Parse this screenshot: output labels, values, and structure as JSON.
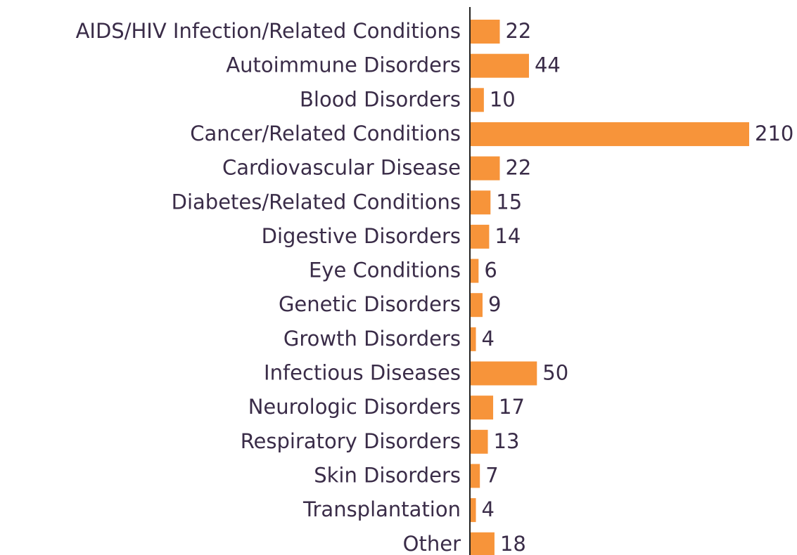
{
  "chart_data": {
    "type": "bar",
    "orientation": "horizontal",
    "categories": [
      "AIDS/HIV Infection/Related Conditions",
      "Autoimmune Disorders",
      "Blood Disorders",
      "Cancer/Related Conditions",
      "Cardiovascular Disease",
      "Diabetes/Related Conditions",
      "Digestive Disorders",
      "Eye Conditions",
      "Genetic Disorders",
      "Growth Disorders",
      "Infectious Diseases",
      "Neurologic Disorders",
      "Respiratory Disorders",
      "Skin Disorders",
      "Transplantation",
      "Other"
    ],
    "values": [
      22,
      44,
      10,
      210,
      22,
      15,
      14,
      6,
      9,
      4,
      50,
      17,
      13,
      7,
      4,
      18
    ],
    "color": "#f7943a"
  }
}
